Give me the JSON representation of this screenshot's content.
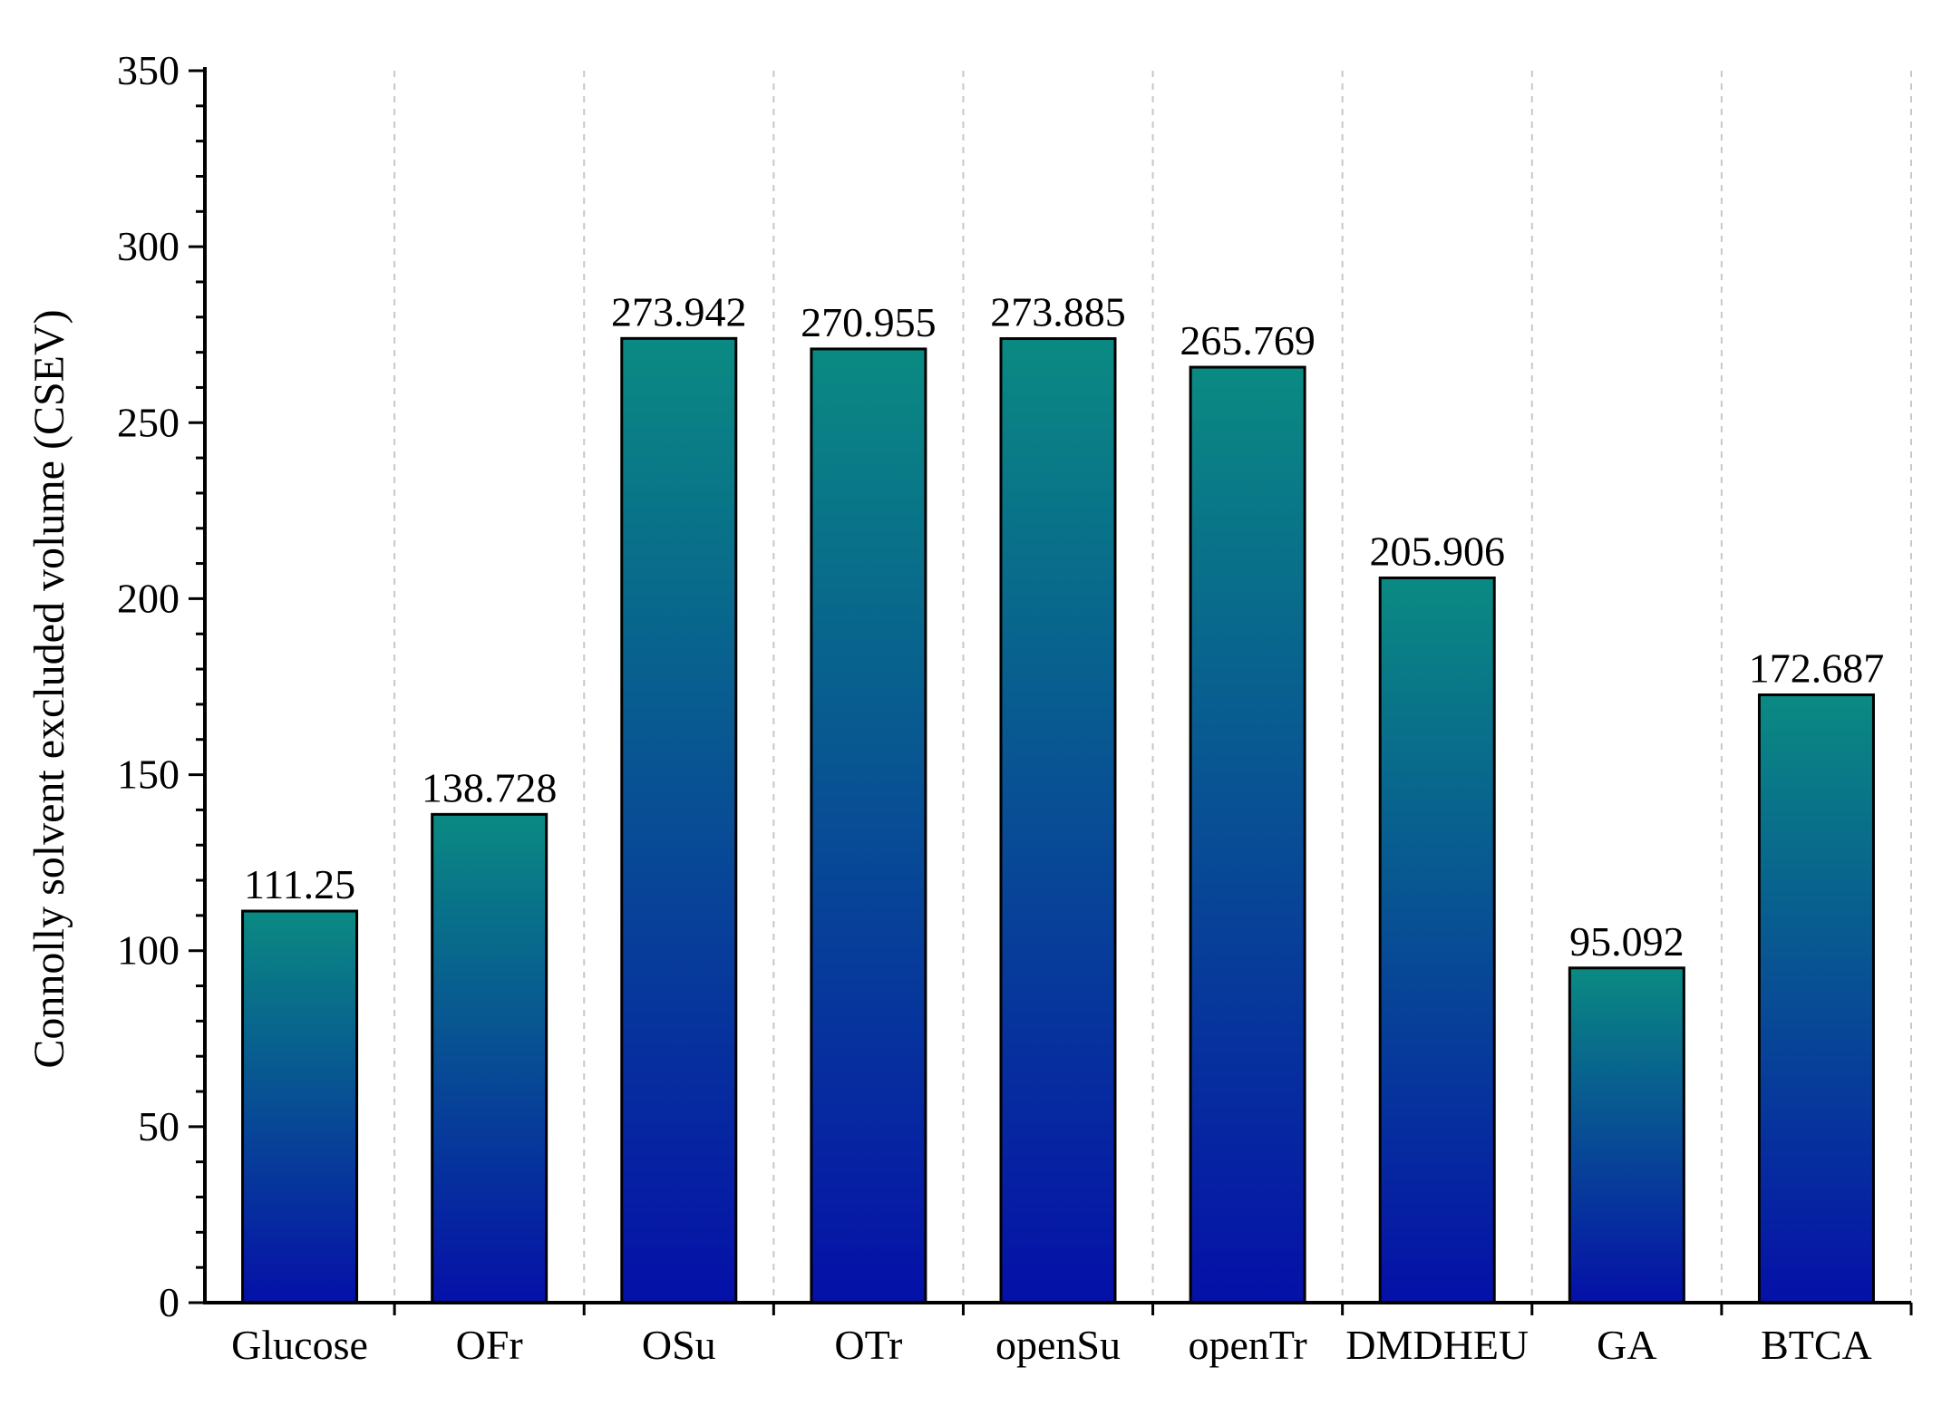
{
  "chart_data": {
    "type": "bar",
    "title": "",
    "xlabel": "",
    "ylabel": "Connolly solvent excluded volume (CSEV)",
    "ylim": [
      0,
      350
    ],
    "yticks": [
      0,
      50,
      100,
      150,
      200,
      250,
      300,
      350
    ],
    "y_minor_step": 10,
    "grid": "vertical dashed separators between categories",
    "categories": [
      "Glucose",
      "OFr",
      "OSu",
      "OTr",
      "openSu",
      "openTr",
      "DMDHEU",
      "GA",
      "BTCA"
    ],
    "values": [
      111.25,
      138.728,
      273.942,
      270.955,
      273.885,
      265.769,
      205.906,
      95.092,
      172.687
    ],
    "data_labels": [
      "111.25",
      "138.728",
      "273.942",
      "270.955",
      "273.885",
      "265.769",
      "205.906",
      "95.092",
      "172.687"
    ],
    "bar_gradient": {
      "top": "#0a8a82",
      "bottom": "#0510a8"
    }
  }
}
